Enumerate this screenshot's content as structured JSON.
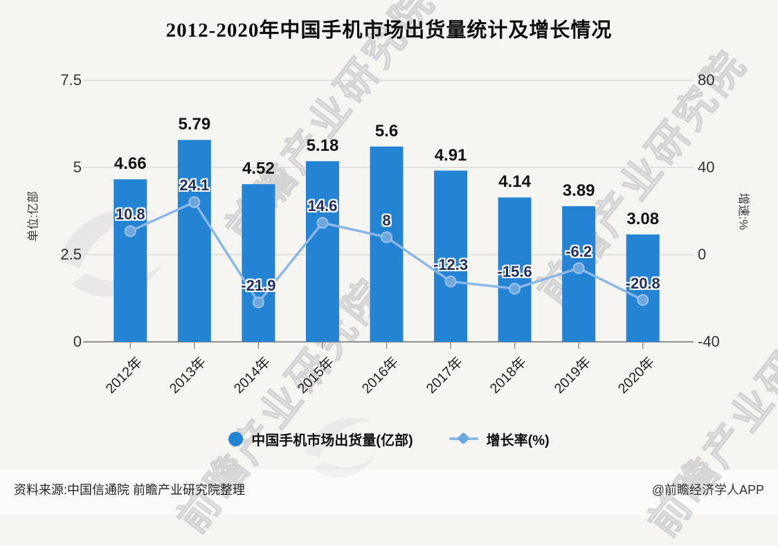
{
  "title": "2012-2020年中国手机市场出货量统计及增长情况",
  "watermark": {
    "text": "前瞻产业研究院"
  },
  "footer": {
    "source": "资料来源:中国信通院 前瞻产业研究院整理",
    "credit": "@前瞻经济学人APP"
  },
  "colors": {
    "bar": "#2583d3",
    "line": "#8ab7e5",
    "marker_fill": "#6ca7de",
    "marker_stroke": "#9cc3eb",
    "value_label": "#21305f",
    "grid": "#d9d9d8",
    "axis_line": "#8f8f8f",
    "background": "#f6f5f2"
  },
  "chart_data": {
    "type": "bar",
    "subtype": "bar+line combo, dual y-axis",
    "categories": [
      "2012年",
      "2013年",
      "2014年",
      "2015年",
      "2016年",
      "2017年",
      "2018年",
      "2019年",
      "2020年"
    ],
    "series": [
      {
        "name": "中国手机市场出货量(亿部)",
        "type": "bar",
        "axis": "left",
        "values": [
          4.66,
          5.79,
          4.52,
          5.18,
          5.6,
          4.91,
          4.14,
          3.89,
          3.08
        ]
      },
      {
        "name": "增长率(%)",
        "type": "line",
        "axis": "right",
        "values": [
          10.8,
          24.1,
          -21.9,
          14.6,
          8,
          -12.3,
          -15.6,
          -6.2,
          -20.8
        ]
      }
    ],
    "left_axis": {
      "title": "单位:亿部",
      "range": [
        0,
        7.5
      ],
      "ticks": [
        0,
        2.5,
        5,
        7.5
      ]
    },
    "right_axis": {
      "title": "增速:%",
      "range": [
        -40,
        80
      ],
      "ticks": [
        -40,
        0,
        40,
        80
      ]
    },
    "grid": true,
    "legend_position": "bottom",
    "title": "2012-2020年中国手机市场出货量统计及增长情况"
  }
}
